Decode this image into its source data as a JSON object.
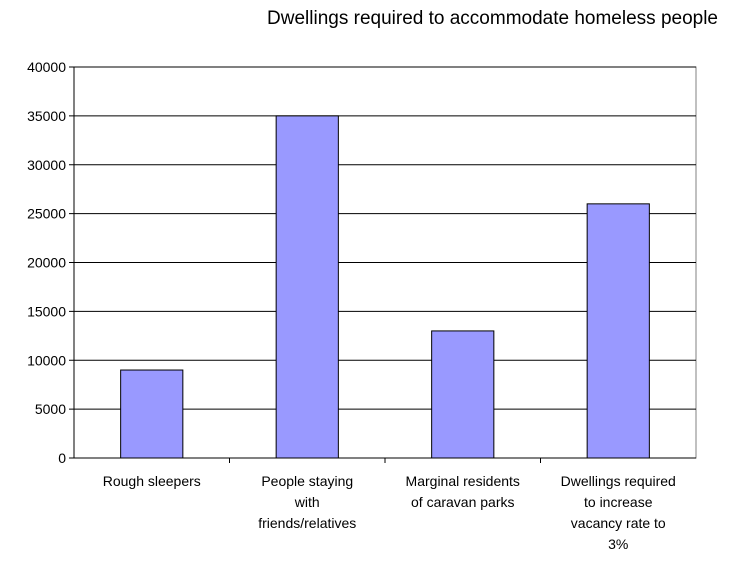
{
  "chart_data": {
    "type": "bar",
    "title": "Dwellings required to accommodate homeless people",
    "categories": [
      "Rough sleepers",
      "People staying with friends/relatives",
      "Marginal residents of caravan parks",
      "Dwellings required to increase vacancy rate to 3%"
    ],
    "category_lines": [
      [
        "Rough sleepers"
      ],
      [
        "People staying",
        "with",
        "friends/relatives"
      ],
      [
        "Marginal residents",
        "of caravan parks"
      ],
      [
        "Dwellings required",
        "to increase",
        "vacancy rate to",
        "3%"
      ]
    ],
    "values": [
      9000,
      35000,
      13000,
      26000
    ],
    "ylim": [
      0,
      40000
    ],
    "yticks": [
      "0",
      "5000",
      "10000",
      "15000",
      "20000",
      "25000",
      "30000",
      "35000",
      "40000"
    ],
    "grid": true,
    "legend": "none",
    "bar_color": "#9999ff",
    "bar_stroke": "#000000",
    "xlabel": "",
    "ylabel": ""
  }
}
